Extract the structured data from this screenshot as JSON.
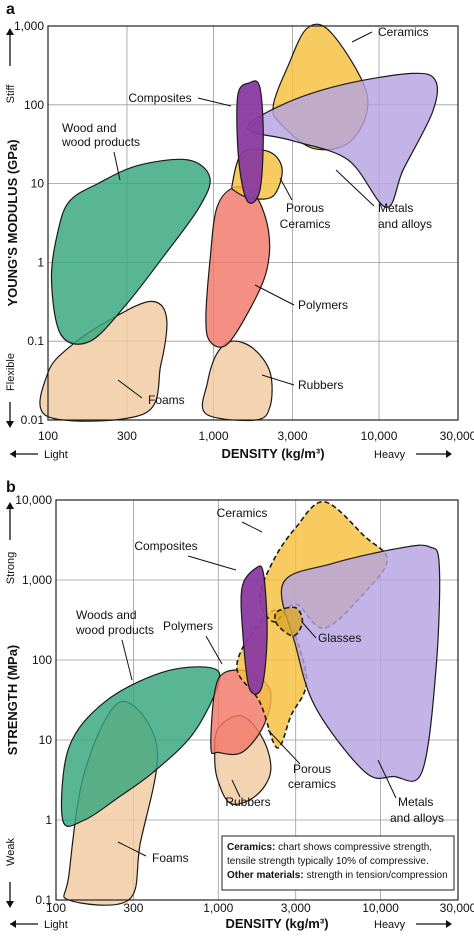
{
  "chart_data": [
    {
      "panel": "a",
      "type": "area",
      "xlabel": "DENSITY (kg/m³)",
      "ylabel": "YOUNG'S MODULUS (GPa)",
      "x_scale": "log",
      "y_scale": "log",
      "xlim": [
        100,
        30000
      ],
      "ylim": [
        0.01,
        1000
      ],
      "x_ticks": [
        "100",
        "300",
        "1,000",
        "3,000",
        "10,000",
        "30,000"
      ],
      "x_tick_values": [
        100,
        300,
        1000,
        3000,
        10000,
        30000
      ],
      "y_ticks": [
        "0.01",
        "0.1",
        "1",
        "10",
        "100",
        "1,000"
      ],
      "y_tick_values": [
        0.01,
        0.1,
        1,
        10,
        100,
        1000
      ],
      "x_direction": {
        "left": "Light",
        "right": "Heavy"
      },
      "y_direction": {
        "top": "Stiff",
        "bottom": "Flexible"
      },
      "grid": true,
      "series": [
        {
          "name": "Foams",
          "color": "#f2c9a0",
          "points": [
            [
              100,
              0.04
            ],
            [
              140,
              0.09
            ],
            [
              250,
              0.2
            ],
            [
              420,
              0.32
            ],
            [
              520,
              0.2
            ],
            [
              480,
              0.05
            ],
            [
              380,
              0.012
            ],
            [
              100,
              0.011
            ]
          ]
        },
        {
          "name": "Wood and wood products",
          "color": "#35a67e",
          "points": [
            [
              115,
              2.5
            ],
            [
              135,
              6
            ],
            [
              200,
              10
            ],
            [
              350,
              17
            ],
            [
              700,
              20
            ],
            [
              950,
              12
            ],
            [
              820,
              5
            ],
            [
              500,
              1.2
            ],
            [
              300,
              0.3
            ],
            [
              180,
              0.1
            ],
            [
              120,
              0.12
            ],
            [
              105,
              0.6
            ]
          ]
        },
        {
          "name": "Rubbers",
          "color": "#f2c9a0",
          "points": [
            [
              900,
              0.012
            ],
            [
              920,
              0.03
            ],
            [
              1050,
              0.07
            ],
            [
              1300,
              0.1
            ],
            [
              1750,
              0.08
            ],
            [
              2200,
              0.04
            ],
            [
              2200,
              0.015
            ],
            [
              1800,
              0.01
            ]
          ]
        },
        {
          "name": "Polymers",
          "color": "#f27868",
          "points": [
            [
              900,
              0.2
            ],
            [
              950,
              1
            ],
            [
              1050,
              5
            ],
            [
              1350,
              9
            ],
            [
              1800,
              7
            ],
            [
              2150,
              2.5
            ],
            [
              2100,
              0.8
            ],
            [
              1650,
              0.25
            ],
            [
              1200,
              0.09
            ],
            [
              950,
              0.1
            ]
          ]
        },
        {
          "name": "Porous Ceramics",
          "color": "#f6c03e",
          "points": [
            [
              1300,
              10
            ],
            [
              1500,
              25
            ],
            [
              2200,
              25
            ],
            [
              2600,
              15
            ],
            [
              2300,
              7
            ],
            [
              1700,
              6.5
            ],
            [
              1350,
              8
            ]
          ]
        },
        {
          "name": "Ceramics",
          "color": "#f6c03e",
          "points": [
            [
              2300,
              100
            ],
            [
              2800,
              300
            ],
            [
              3700,
              950
            ],
            [
              5200,
              800
            ],
            [
              8500,
              130
            ],
            [
              6800,
              35
            ],
            [
              4000,
              28
            ],
            [
              2500,
              60
            ]
          ]
        },
        {
          "name": "Metals and alloys",
          "color": "#b6a2e0",
          "points": [
            [
              1600,
              50
            ],
            [
              2600,
              100
            ],
            [
              6000,
              180
            ],
            [
              16000,
              250
            ],
            [
              22000,
              200
            ],
            [
              21000,
              80
            ],
            [
              14000,
              15
            ],
            [
              11000,
              5
            ],
            [
              6500,
              20
            ],
            [
              3000,
              35
            ]
          ]
        },
        {
          "name": "Composites",
          "color": "#8a3aa0",
          "points": [
            [
              1400,
              130
            ],
            [
              1650,
              190
            ],
            [
              1900,
              170
            ],
            [
              2000,
              40
            ],
            [
              1900,
              8
            ],
            [
              1600,
              6
            ],
            [
              1420,
              20
            ]
          ]
        }
      ],
      "annotations": [
        "Ceramics",
        "Composites",
        "Wood and wood products",
        "Porous Ceramics",
        "Metals and alloys",
        "Polymers",
        "Rubbers",
        "Foams"
      ]
    },
    {
      "panel": "b",
      "type": "area",
      "xlabel": "DENSITY (kg/m³)",
      "ylabel": "STRENGTH (MPa)",
      "x_scale": "log",
      "y_scale": "log",
      "xlim": [
        100,
        30000
      ],
      "ylim": [
        0.1,
        10000
      ],
      "x_ticks": [
        "100",
        "300",
        "1,000",
        "3,000",
        "10,000",
        "30,000"
      ],
      "x_tick_values": [
        100,
        300,
        1000,
        3000,
        10000,
        30000
      ],
      "y_ticks": [
        "0.1",
        "1",
        "10",
        "100",
        "1,000",
        "10,000"
      ],
      "y_tick_values": [
        0.1,
        1,
        10,
        100,
        1000,
        10000
      ],
      "x_direction": {
        "left": "Light",
        "right": "Heavy"
      },
      "y_direction": {
        "top": "Strong",
        "bottom": "Weak"
      },
      "grid": true,
      "series": [
        {
          "name": "Foams",
          "color": "#f2c9a0",
          "points": [
            [
              120,
              0.2
            ],
            [
              150,
              4
            ],
            [
              250,
              30
            ],
            [
              420,
              8
            ],
            [
              330,
              0.5
            ],
            [
              280,
              0.1
            ],
            [
              120,
              0.1
            ]
          ]
        },
        {
          "name": "Woods and wood products",
          "color": "#35a67e",
          "points": [
            [
              110,
              1
            ],
            [
              120,
              8
            ],
            [
              200,
              30
            ],
            [
              450,
              70
            ],
            [
              900,
              80
            ],
            [
              1000,
              50
            ],
            [
              700,
              12
            ],
            [
              400,
              4
            ],
            [
              250,
              2
            ],
            [
              150,
              1
            ]
          ]
        },
        {
          "name": "Rubbers",
          "color": "#f2c9a0",
          "points": [
            [
              950,
              6
            ],
            [
              1000,
              14
            ],
            [
              1400,
              20
            ],
            [
              1900,
              10
            ],
            [
              2100,
              4
            ],
            [
              1700,
              2
            ],
            [
              1200,
              1.6
            ],
            [
              1000,
              3
            ]
          ]
        },
        {
          "name": "Polymers",
          "color": "#f27868",
          "points": [
            [
              900,
              8
            ],
            [
              950,
              40
            ],
            [
              1100,
              70
            ],
            [
              1600,
              70
            ],
            [
              2100,
              40
            ],
            [
              1900,
              15
            ],
            [
              1400,
              7
            ],
            [
              1000,
              7
            ]
          ]
        },
        {
          "name": "Porous ceramics",
          "color": "#f6c03e",
          "points": [
            [
              1300,
              80
            ],
            [
              1800,
              30
            ],
            [
              2300,
              8
            ],
            [
              2800,
              20
            ],
            [
              3500,
              60
            ],
            [
              2500,
              400
            ],
            [
              1700,
              250
            ]
          ]
        },
        {
          "name": "Ceramics",
          "color": "#f6c03e",
          "points": [
            [
              1800,
              600
            ],
            [
              2200,
              1800
            ],
            [
              3000,
              4500
            ],
            [
              4500,
              9500
            ],
            [
              8000,
              3500
            ],
            [
              11000,
              1800
            ],
            [
              8000,
              700
            ],
            [
              4500,
              250
            ],
            [
              3000,
              500
            ],
            [
              2200,
              300
            ]
          ]
        },
        {
          "name": "Metals and alloys",
          "color": "#b6a2e0",
          "points": [
            [
              2500,
              900
            ],
            [
              5000,
              1600
            ],
            [
              13000,
              2500
            ],
            [
              20000,
              2600
            ],
            [
              23000,
              1500
            ],
            [
              22000,
              80
            ],
            [
              18000,
              4
            ],
            [
              12000,
              3.5
            ],
            [
              8000,
              4
            ],
            [
              4000,
              25
            ],
            [
              3000,
              150
            ]
          ]
        },
        {
          "name": "Glasses",
          "color": "#d9a72a",
          "points": [
            [
              2300,
              400
            ],
            [
              3000,
              450
            ],
            [
              3300,
              300
            ],
            [
              2900,
              200
            ],
            [
              2300,
              280
            ]
          ]
        },
        {
          "name": "Composites",
          "color": "#8a3aa0",
          "points": [
            [
              1400,
              800
            ],
            [
              1700,
              1400
            ],
            [
              1900,
              1200
            ],
            [
              2000,
              200
            ],
            [
              1850,
              45
            ],
            [
              1550,
              45
            ],
            [
              1420,
              200
            ]
          ]
        }
      ],
      "annotations": [
        "Ceramics",
        "Composites",
        "Woods and wood products",
        "Polymers",
        "Glasses",
        "Porous ceramics",
        "Rubbers",
        "Metals and alloys",
        "Foams"
      ],
      "note": {
        "line1_bold": "Ceramics:",
        "line1": " chart shows compressive strength,",
        "line2": "tensile strength typically 10% of compressive.",
        "line3_bold": "Other materials:",
        "line3": " strength in tension/compression"
      }
    }
  ],
  "panel_labels": [
    "a",
    "b"
  ]
}
